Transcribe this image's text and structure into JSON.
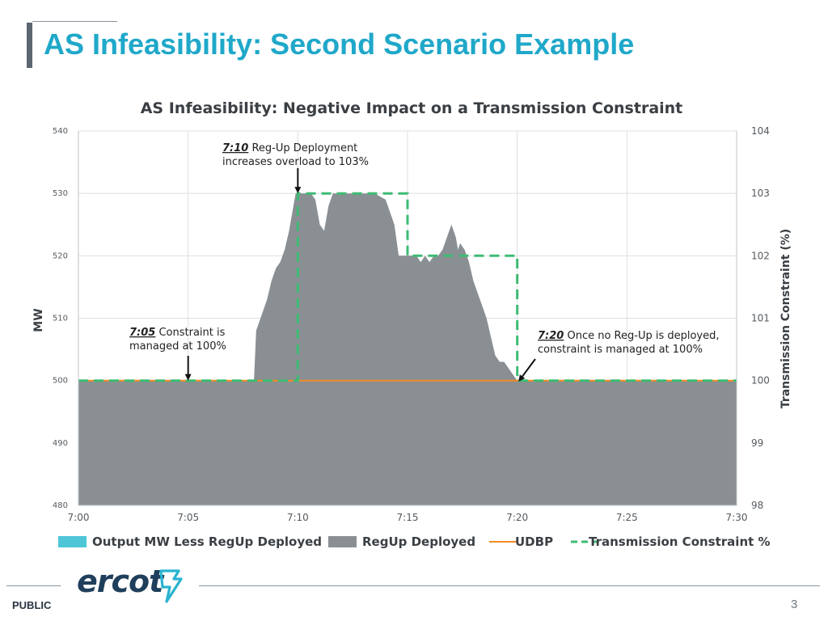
{
  "slide": {
    "title": "AS Infeasibility: Second Scenario Example",
    "footer_label": "PUBLIC",
    "page_number": "3",
    "logo_text": "ercot",
    "colors": {
      "title": "#1fa8c9",
      "accent_bar": "#5b6670",
      "logo": "#1f3f5c",
      "logo_mark": "#2ab3d1"
    }
  },
  "chart_data": {
    "type": "area",
    "title": "AS Infeasibility: Negative Impact on a Transmission Constraint",
    "ylabel": "MW",
    "y2label": "Transmission Constraint (%)",
    "xlabel": "",
    "x_ticks": [
      "7:00",
      "7:05",
      "7:10",
      "7:15",
      "7:20",
      "7:25",
      "7:30"
    ],
    "x_range_minutes": [
      0,
      30
    ],
    "ylim": [
      480,
      540
    ],
    "y_ticks": [
      480,
      490,
      500,
      510,
      520,
      530,
      540
    ],
    "y2lim": [
      98,
      104
    ],
    "y2_ticks": [
      98,
      99,
      100,
      101,
      102,
      103,
      104
    ],
    "grid": true,
    "legend": "bottom",
    "series": [
      {
        "name": "Output MW Less RegUp Deployed",
        "kind": "area",
        "color": "#4ec6d8",
        "x": [
          0,
          30
        ],
        "y": [
          500,
          500
        ]
      },
      {
        "name": "RegUp Deployed",
        "kind": "area",
        "color": "#8a8f93",
        "x": [
          0,
          8.0,
          8.1,
          8.2,
          8.4,
          8.6,
          8.8,
          9.0,
          9.2,
          9.4,
          9.6,
          9.8,
          9.9,
          10.0,
          10.3,
          10.6,
          10.8,
          11.0,
          11.2,
          11.4,
          11.6,
          11.8,
          12.0,
          12.5,
          13.0,
          13.5,
          14.0,
          14.2,
          14.4,
          14.6,
          14.8,
          15.0,
          15.4,
          15.6,
          15.8,
          16.0,
          16.2,
          16.4,
          16.6,
          16.8,
          17.0,
          17.2,
          17.3,
          17.4,
          17.6,
          17.8,
          18.0,
          18.2,
          18.4,
          18.6,
          18.8,
          19.0,
          19.2,
          19.4,
          19.6,
          19.8,
          20.0,
          30
        ],
        "y": [
          500,
          500,
          508,
          509,
          511,
          513,
          516,
          518,
          519,
          521,
          524,
          528,
          530,
          530,
          530,
          530,
          529,
          525,
          524,
          528,
          530,
          530,
          530,
          530,
          530,
          530,
          529,
          527,
          525,
          520,
          520,
          520,
          520,
          519,
          520,
          519,
          520,
          520,
          521,
          523,
          525,
          523,
          521,
          522,
          521,
          519,
          516,
          514,
          512,
          510,
          507,
          504,
          503,
          503,
          502,
          501,
          500,
          500
        ]
      },
      {
        "name": "UDBP",
        "kind": "line",
        "color": "#f08b24",
        "x": [
          0,
          30
        ],
        "y": [
          500,
          500
        ]
      },
      {
        "name": "Transmission Constraint %",
        "kind": "dashed-line",
        "axis": "right",
        "color": "#3dbb73",
        "x": [
          0,
          10,
          10,
          15,
          15,
          20,
          20,
          30
        ],
        "y": [
          100,
          100,
          103,
          103,
          102,
          102,
          100,
          100
        ]
      }
    ],
    "annotations": [
      {
        "time": "7:10",
        "text": "Reg-Up Deployment increases overload to 103%",
        "lines": [
          "Reg-Up Deployment",
          "increases overload to 103%"
        ],
        "arrow_x": 10,
        "arrow_y": 530
      },
      {
        "time": "7:05",
        "text": "Constraint is managed at 100%",
        "lines": [
          "Constraint is",
          "managed at 100%"
        ],
        "arrow_x": 5,
        "arrow_y": 500
      },
      {
        "time": "7:20",
        "text": "Once no Reg-Up is deployed, constraint is managed at 100%",
        "lines": [
          "Once no Reg-Up is deployed,",
          "constraint is managed at 100%"
        ],
        "arrow_x": 20,
        "arrow_y": 500
      }
    ]
  }
}
